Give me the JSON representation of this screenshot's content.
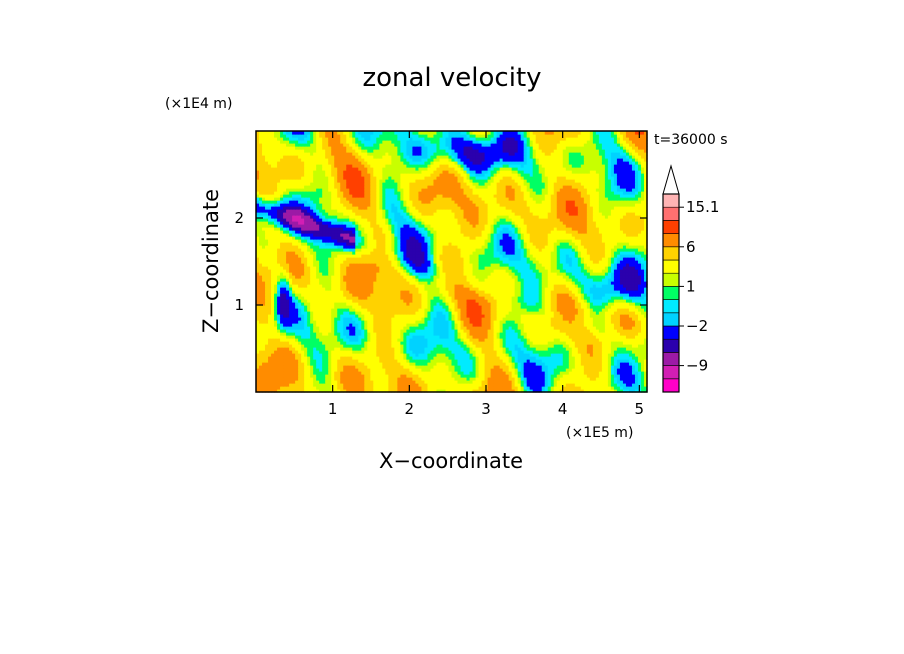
{
  "chart_data": {
    "type": "heatmap",
    "title": "zonal velocity",
    "time_label": "t=36000 s",
    "xlabel": "X−coordinate",
    "ylabel": "Z−coordinate",
    "x_scale_label": "(×1E5 m)",
    "y_scale_label": "(×1E4 m)",
    "xlim": [
      0,
      5.1
    ],
    "ylim": [
      0,
      3.0
    ],
    "x_ticks": [
      1,
      2,
      3,
      4,
      5
    ],
    "x_tick_labels": [
      "1",
      "2",
      "3",
      "4",
      "5"
    ],
    "y_ticks": [
      1,
      2
    ],
    "y_tick_labels": [
      "1",
      "2"
    ],
    "colorbar": {
      "levels": [
        -15.1,
        -12,
        -9,
        -6,
        -4,
        -2,
        -1,
        0,
        1,
        2,
        4,
        6,
        9,
        12,
        15.1
      ],
      "colors": [
        "#ff00c8",
        "#d21eb4",
        "#9c1aa6",
        "#2b00ad",
        "#0000ff",
        "#00d2ff",
        "#00ebff",
        "#00ff64",
        "#c8ff00",
        "#ffff00",
        "#ffd200",
        "#ff8c00",
        "#ff4000",
        "#ff7070",
        "#ffb4b4"
      ],
      "labeled_levels": [
        15.1,
        6,
        1,
        -2,
        -9
      ],
      "labels": [
        "15.1",
        "6",
        "1",
        "−2",
        "−9"
      ],
      "extend": "max"
    }
  }
}
